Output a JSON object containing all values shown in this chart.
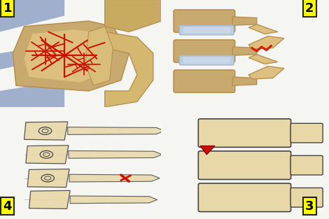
{
  "background_color": "#f5f5f2",
  "bone_tan": "#c8a96e",
  "bone_light": "#ddc080",
  "bone_medium": "#b89050",
  "bone_dark": "#9a7840",
  "bone_cream": "#e8d4a0",
  "bone_sketch": "#e8d8a8",
  "disc_blue": "#a8bcd0",
  "disc_blue2": "#c0cede",
  "blue_spinal": "#8090b8",
  "blue_spinal2": "#a0b0cc",
  "fracture_red": "#cc1100",
  "fracture_red2": "#ee2200",
  "sketch_dark": "#444444",
  "sketch_mid": "#666666",
  "sketch_light": "#999999",
  "white_bg": "#fafaf8",
  "label_yellow": "#ffff00",
  "panel_gap_color": "#f5f5f2"
}
